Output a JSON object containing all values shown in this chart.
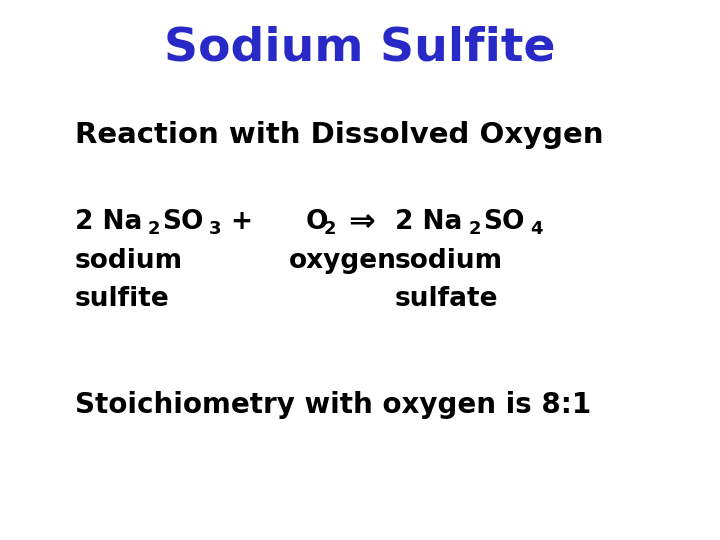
{
  "title": "Sodium Sulfite",
  "title_color": "#2929c8",
  "title_fontsize": 34,
  "bg_color": "#ffffff",
  "subtitle": "Reaction with Dissolved Oxygen",
  "stoich_text": "Stoichiometry with oxygen is 8:1",
  "text_color": "#000000",
  "arrow_char": "⇒",
  "reaction_fontsize": 19,
  "sub_fontsize": 13
}
